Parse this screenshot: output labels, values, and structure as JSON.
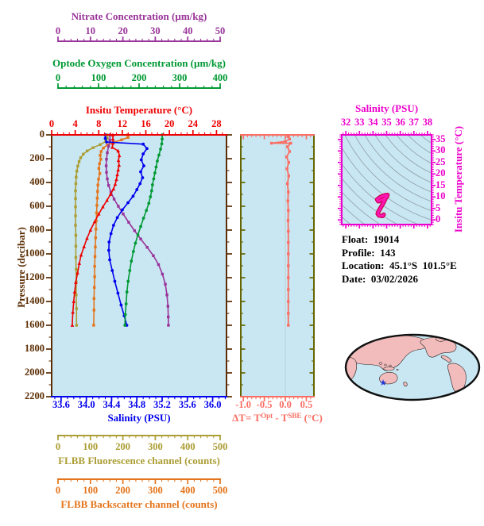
{
  "info": {
    "lines": [
      "Float:  19014",
      "Profile:  143",
      "Location:  45.1°S  101.5°E",
      "Date:  03/02/2026"
    ]
  },
  "chart_data": {
    "type": "line",
    "description": "Ocean float vertical profiles vs pressure, with Optode-SBE temperature difference panel, T-S diagram with isopycnals, and float location map",
    "plot_bg": "#c8e7f3",
    "pressure_axis": {
      "label": "Pressure (decibar)",
      "range": [
        0,
        2200
      ],
      "ticks": [
        0,
        200,
        400,
        600,
        800,
        1000,
        1200,
        1400,
        1600,
        1800,
        2000,
        2200
      ],
      "tick_labels": [
        "0",
        "200",
        "400",
        "600",
        "800",
        "1000",
        "1200",
        "1400",
        "1600",
        "1800",
        "2000",
        "2200"
      ],
      "minor_step": 100,
      "color": "#5c2e04"
    },
    "x_axes": {
      "nitrate": {
        "label": "Nitrate Concentration (µm/kg)",
        "color": "#993399",
        "range": [
          0,
          50
        ],
        "ticks": [
          0,
          10,
          20,
          30,
          40,
          50
        ],
        "tick_labels": [
          "0",
          "10",
          "20",
          "30",
          "40",
          "50"
        ],
        "minor_step": 2
      },
      "oxygen": {
        "label": "Optode Oxygen Concentration (µm/kg)",
        "color": "#009933",
        "range": [
          0,
          400
        ],
        "ticks": [
          0,
          100,
          200,
          300,
          400
        ],
        "tick_labels": [
          "0",
          "100",
          "200",
          "300",
          "400"
        ],
        "minor_step": 20
      },
      "temperature": {
        "label": "Insitu Temperature (°C)",
        "color": "#ee0000",
        "range": [
          0,
          29.7
        ],
        "ticks": [
          0,
          4,
          8,
          12,
          16,
          20,
          24,
          28
        ],
        "tick_labels": [
          "0",
          "4",
          "8",
          "12",
          "16",
          "20",
          "24",
          "28"
        ],
        "minor_step": 1
      },
      "salinity": {
        "label": "Salinity (PSU)",
        "color": "#0000ee",
        "range": [
          33.45,
          36.22
        ],
        "ticks": [
          33.6,
          34.0,
          34.4,
          34.8,
          35.2,
          35.6,
          36.0
        ],
        "tick_labels": [
          "33.6",
          "34.0",
          "34.4",
          "34.8",
          "35.2",
          "35.6",
          "36.0"
        ],
        "minor_step": 0.1
      },
      "fluorescence": {
        "label": "FLBB Fluorescence channel (counts)",
        "color": "#ab9d33",
        "range": [
          0,
          500
        ],
        "ticks": [
          0,
          100,
          200,
          300,
          400,
          500
        ],
        "tick_labels": [
          "0",
          "100",
          "200",
          "300",
          "400",
          "500"
        ],
        "minor_step": 20
      },
      "backscatter": {
        "label": "FLBB Backscatter channel (counts)",
        "color": "#e4751c",
        "range": [
          0,
          500
        ],
        "ticks": [
          0,
          100,
          200,
          300,
          400,
          500
        ],
        "tick_labels": [
          "0",
          "100",
          "200",
          "300",
          "400",
          "500"
        ],
        "minor_step": 20
      }
    },
    "profiles": [
      {
        "name": "FLBB Fluorescence",
        "axis": "fluorescence",
        "color": "#ab9d33",
        "marker": "square",
        "points": [
          [
            150,
            0
          ],
          [
            152,
            28
          ],
          [
            147,
            55
          ],
          [
            130,
            82
          ],
          [
            108,
            108
          ],
          [
            90,
            135
          ],
          [
            78,
            162
          ],
          [
            70,
            192
          ],
          [
            65,
            225
          ],
          [
            61,
            262
          ],
          [
            58,
            305
          ],
          [
            56,
            355
          ],
          [
            55,
            410
          ],
          [
            54,
            470
          ],
          [
            54,
            535
          ],
          [
            54,
            605
          ],
          [
            54,
            680
          ],
          [
            54,
            760
          ],
          [
            55,
            845
          ],
          [
            55,
            935
          ],
          [
            55,
            1030
          ],
          [
            56,
            1130
          ],
          [
            56,
            1235
          ],
          [
            56,
            1345
          ],
          [
            57,
            1460
          ],
          [
            57,
            1600
          ]
        ]
      },
      {
        "name": "FLBB Backscatter",
        "axis": "backscatter",
        "color": "#e4751c",
        "marker": "square",
        "points": [
          [
            215,
            0
          ],
          [
            216,
            22
          ],
          [
            196,
            42
          ],
          [
            172,
            62
          ],
          [
            152,
            85
          ],
          [
            140,
            110
          ],
          [
            133,
            140
          ],
          [
            130,
            172
          ],
          [
            132,
            205
          ],
          [
            128,
            242
          ],
          [
            126,
            282
          ],
          [
            129,
            325
          ],
          [
            125,
            372
          ],
          [
            123,
            422
          ],
          [
            122,
            475
          ],
          [
            121,
            532
          ],
          [
            120,
            592
          ],
          [
            119,
            655
          ],
          [
            118,
            722
          ],
          [
            117,
            792
          ],
          [
            116,
            865
          ],
          [
            115,
            942
          ],
          [
            114,
            1022
          ],
          [
            113,
            1105
          ],
          [
            113,
            1192
          ],
          [
            112,
            1282
          ],
          [
            111,
            1375
          ],
          [
            111,
            1472
          ],
          [
            110,
            1600
          ]
        ]
      },
      {
        "name": "Nitrate",
        "axis": "nitrate",
        "color": "#993399",
        "marker": "square",
        "points": [
          [
            16,
            0
          ],
          [
            16,
            45
          ],
          [
            15.6,
            95
          ],
          [
            15.2,
            150
          ],
          [
            14.95,
            205
          ],
          [
            14.85,
            260
          ],
          [
            14.95,
            315
          ],
          [
            15.2,
            370
          ],
          [
            15.6,
            425
          ],
          [
            16.3,
            480
          ],
          [
            17.3,
            540
          ],
          [
            18.6,
            600
          ],
          [
            20.1,
            665
          ],
          [
            21.8,
            735
          ],
          [
            23.6,
            805
          ],
          [
            25.5,
            875
          ],
          [
            27.5,
            945
          ],
          [
            29.4,
            1015
          ],
          [
            31.0,
            1090
          ],
          [
            32.2,
            1170
          ],
          [
            33.1,
            1255
          ],
          [
            33.6,
            1345
          ],
          [
            33.9,
            1440
          ],
          [
            34.0,
            1530
          ],
          [
            34.05,
            1600
          ]
        ]
      },
      {
        "name": "Insitu Temperature",
        "axis": "temperature",
        "color": "#ee0000",
        "marker": "triangle",
        "points": [
          [
            10.4,
            0
          ],
          [
            10.4,
            35
          ],
          [
            10.4,
            70
          ],
          [
            10.3,
            105
          ],
          [
            11.3,
            135
          ],
          [
            11.5,
            175
          ],
          [
            11.35,
            215
          ],
          [
            11.45,
            255
          ],
          [
            11.3,
            295
          ],
          [
            11.15,
            335
          ],
          [
            11.0,
            375
          ],
          [
            10.8,
            415
          ],
          [
            10.5,
            455
          ],
          [
            10.0,
            500
          ],
          [
            9.4,
            550
          ],
          [
            8.7,
            605
          ],
          [
            8.0,
            665
          ],
          [
            7.3,
            730
          ],
          [
            6.6,
            800
          ],
          [
            6.0,
            870
          ],
          [
            5.5,
            940
          ],
          [
            5.0,
            1010
          ],
          [
            4.7,
            1080
          ],
          [
            4.4,
            1160
          ],
          [
            4.1,
            1240
          ],
          [
            3.9,
            1320
          ],
          [
            3.75,
            1400
          ],
          [
            3.6,
            1490
          ],
          [
            3.5,
            1600
          ]
        ]
      },
      {
        "name": "Salinity",
        "axis": "salinity",
        "color": "#0000ee",
        "marker": "circle",
        "points": [
          [
            34.3,
            0
          ],
          [
            34.3,
            30
          ],
          [
            34.32,
            60
          ],
          [
            34.9,
            78
          ],
          [
            34.96,
            115
          ],
          [
            34.9,
            160
          ],
          [
            34.87,
            210
          ],
          [
            34.91,
            260
          ],
          [
            34.86,
            310
          ],
          [
            34.89,
            360
          ],
          [
            34.85,
            410
          ],
          [
            34.8,
            460
          ],
          [
            34.74,
            515
          ],
          [
            34.66,
            570
          ],
          [
            34.57,
            630
          ],
          [
            34.49,
            695
          ],
          [
            34.43,
            760
          ],
          [
            34.39,
            830
          ],
          [
            34.36,
            900
          ],
          [
            34.355,
            970
          ],
          [
            34.37,
            1050
          ],
          [
            34.41,
            1140
          ],
          [
            34.45,
            1230
          ],
          [
            34.5,
            1330
          ],
          [
            34.55,
            1430
          ],
          [
            34.6,
            1520
          ],
          [
            34.64,
            1600
          ]
        ]
      },
      {
        "name": "Optode Oxygen",
        "axis": "oxygen",
        "color": "#009933",
        "marker": "circle",
        "points": [
          [
            257,
            0
          ],
          [
            257,
            35
          ],
          [
            256,
            75
          ],
          [
            253,
            120
          ],
          [
            249,
            170
          ],
          [
            245,
            220
          ],
          [
            242,
            270
          ],
          [
            239,
            320
          ],
          [
            236,
            370
          ],
          [
            233,
            420
          ],
          [
            231,
            470
          ],
          [
            228,
            520
          ],
          [
            224,
            575
          ],
          [
            218,
            635
          ],
          [
            211,
            700
          ],
          [
            204,
            770
          ],
          [
            197,
            840
          ],
          [
            191,
            910
          ],
          [
            186,
            980
          ],
          [
            181,
            1060
          ],
          [
            177,
            1140
          ],
          [
            173,
            1230
          ],
          [
            170,
            1320
          ],
          [
            168,
            1420
          ],
          [
            166,
            1510
          ],
          [
            165,
            1600
          ]
        ]
      }
    ],
    "delta_panel": {
      "frame_color": "#666600",
      "zero_line_color": "#b8c8cc",
      "axis": {
        "label_parts": {
          "pre": "ΔT= T",
          "sup1": "Opt",
          "mid": " - T",
          "sup2": "SBE",
          "post": " (°C)"
        },
        "color": "#fa6e64",
        "range": [
          -1.06,
          0.68
        ],
        "ticks": [
          -1.0,
          -0.5,
          0.0,
          0.5
        ],
        "tick_labels": [
          "-1.0",
          "-0.5",
          "0.0",
          "0.5"
        ],
        "minor_step": 0.1
      },
      "series": {
        "name": "T_Optode minus T_SBE",
        "color": "#fa6e64",
        "marker": "square",
        "points": [
          [
            0.06,
            15
          ],
          [
            0.1,
            35
          ],
          [
            0.0,
            55
          ],
          [
            -0.33,
            70
          ],
          [
            0.13,
            70
          ],
          [
            0.05,
            100
          ],
          [
            0.1,
            140
          ],
          [
            0.03,
            185
          ],
          [
            0.08,
            232
          ],
          [
            0.04,
            285
          ],
          [
            0.08,
            345
          ],
          [
            0.05,
            410
          ],
          [
            0.07,
            480
          ],
          [
            0.06,
            555
          ],
          [
            0.07,
            635
          ],
          [
            0.065,
            720
          ],
          [
            0.07,
            810
          ],
          [
            0.07,
            905
          ],
          [
            0.07,
            1000
          ],
          [
            0.07,
            1100
          ],
          [
            0.07,
            1200
          ],
          [
            0.07,
            1300
          ],
          [
            0.07,
            1400
          ],
          [
            0.07,
            1500
          ],
          [
            0.07,
            1600
          ]
        ]
      }
    },
    "ts_panel": {
      "frame_color": "#ee00cc",
      "x_axis": {
        "label": "Salinity (PSU)",
        "range": [
          31.7,
          38.3
        ],
        "ticks": [
          32,
          33,
          34,
          35,
          36,
          37,
          38
        ],
        "tick_labels": [
          "32",
          "33",
          "34",
          "35",
          "36",
          "37",
          "38"
        ],
        "minor_step": 0.2
      },
      "y_axis": {
        "label": "Insitu Temperature (°C)",
        "range": [
          -2,
          37
        ],
        "ticks": [
          0,
          5,
          10,
          15,
          20,
          25,
          30,
          35
        ],
        "tick_labels": [
          "0",
          "5",
          "10",
          "15",
          "20",
          "25",
          "30",
          "35"
        ],
        "minor_step": 1
      },
      "isopycnal_color": "#97a6ad",
      "isopycnal_count": 16,
      "curve": {
        "color": "#ff14b4",
        "outline_color": "#cc0050",
        "points": [
          [
            34.9,
            10.8
          ],
          [
            34.55,
            10.0
          ],
          [
            34.3,
            8.9
          ],
          [
            34.38,
            8.1
          ],
          [
            34.75,
            8.9
          ],
          [
            35.02,
            10.1
          ],
          [
            35.06,
            10.9
          ],
          [
            34.95,
            9.7
          ],
          [
            34.78,
            7.6
          ],
          [
            34.58,
            5.5
          ],
          [
            34.42,
            3.9
          ],
          [
            34.34,
            2.7
          ],
          [
            34.44,
            1.9
          ],
          [
            34.7,
            1.7
          ],
          [
            34.78,
            2.3
          ]
        ]
      }
    }
  },
  "map": {
    "ocean": "#c9e7f3",
    "land": "#f3bcbc",
    "outline": "#101010",
    "marker": "star",
    "marker_color": "#2038d8"
  }
}
